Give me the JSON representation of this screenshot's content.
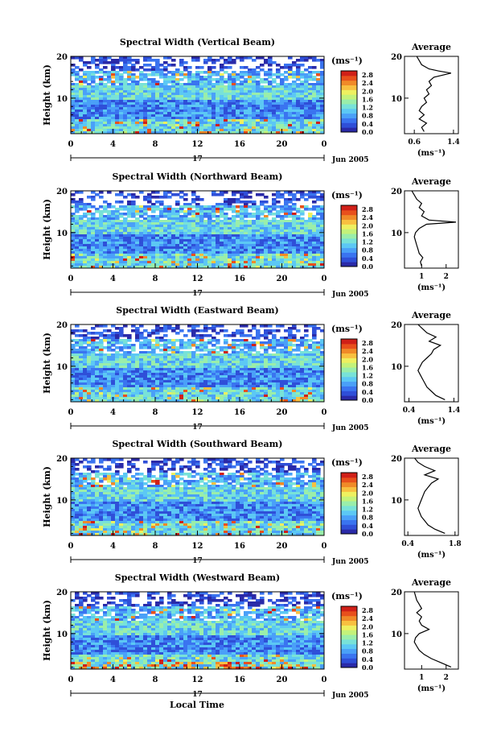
{
  "figure": {
    "xlabel": "Local Time",
    "date_label": "Jun 2005",
    "day_label": "17"
  },
  "colorbar": {
    "unit": "(ms⁻¹)",
    "ticks": [
      "2.8",
      "2.4",
      "2.0",
      "1.6",
      "1.2",
      "0.8",
      "0.4",
      "0.0"
    ],
    "colors": [
      "#2a2aa8",
      "#2f4fd8",
      "#3a74f0",
      "#4aa0f8",
      "#5cc8f4",
      "#78e2d8",
      "#9aeeaa",
      "#c4f27a",
      "#eef060",
      "#f8c040",
      "#f08a28",
      "#e8501c",
      "#d02018"
    ]
  },
  "chart_data": [
    {
      "type": "heatmap",
      "title": "Spectral Width (Vertical Beam)",
      "ylabel": "Height (km)",
      "ylim": [
        1.5,
        20
      ],
      "xlim": [
        0,
        24
      ],
      "xticks": [
        "0",
        "4",
        "8",
        "12",
        "16",
        "20",
        "0"
      ],
      "yticks": [
        "10",
        "20"
      ],
      "colorbar_range": [
        0,
        2.8
      ],
      "profile": {
        "title": "Average",
        "xlabel": "(ms⁻¹)",
        "xticks": [
          "0.6",
          "1.4"
        ],
        "xtick_values": [
          0.6,
          1.4
        ],
        "xlim": [
          0.4,
          1.5
        ],
        "yticks": [
          "10",
          "20"
        ],
        "points": [
          [
            0.8,
            2
          ],
          [
            0.75,
            3
          ],
          [
            0.85,
            4
          ],
          [
            0.7,
            5
          ],
          [
            0.8,
            6
          ],
          [
            0.7,
            7
          ],
          [
            0.75,
            8
          ],
          [
            0.85,
            9
          ],
          [
            0.8,
            10
          ],
          [
            0.9,
            11
          ],
          [
            0.85,
            12
          ],
          [
            0.95,
            13
          ],
          [
            0.9,
            14
          ],
          [
            1.0,
            15
          ],
          [
            1.35,
            16
          ],
          [
            1.1,
            16.5
          ],
          [
            0.9,
            17
          ],
          [
            0.75,
            18
          ],
          [
            0.7,
            19
          ],
          [
            0.65,
            20
          ]
        ]
      }
    },
    {
      "type": "heatmap",
      "title": "Spectral Width (Northward Beam)",
      "ylabel": "Height (km)",
      "ylim": [
        1.5,
        20
      ],
      "xlim": [
        0,
        24
      ],
      "xticks": [
        "0",
        "4",
        "8",
        "12",
        "16",
        "20",
        "0"
      ],
      "yticks": [
        "10",
        "20"
      ],
      "colorbar_range": [
        0,
        2.8
      ],
      "profile": {
        "title": "Average",
        "xlabel": "(ms⁻¹)",
        "xticks": [
          "1",
          "2"
        ],
        "xtick_values": [
          1,
          2
        ],
        "xlim": [
          0.3,
          2.5
        ],
        "yticks": [
          "10",
          "20"
        ],
        "points": [
          [
            1.0,
            2
          ],
          [
            0.95,
            3
          ],
          [
            1.05,
            4
          ],
          [
            0.9,
            5
          ],
          [
            0.85,
            6
          ],
          [
            0.8,
            7
          ],
          [
            0.75,
            8
          ],
          [
            0.7,
            9
          ],
          [
            0.75,
            10
          ],
          [
            0.9,
            11
          ],
          [
            1.2,
            12
          ],
          [
            2.4,
            12.5
          ],
          [
            1.3,
            13
          ],
          [
            1.0,
            14
          ],
          [
            1.1,
            15
          ],
          [
            0.9,
            16
          ],
          [
            1.0,
            17
          ],
          [
            0.8,
            18
          ],
          [
            0.7,
            19
          ],
          [
            0.6,
            20
          ]
        ]
      }
    },
    {
      "type": "heatmap",
      "title": "Spectral Width (Eastward Beam)",
      "ylabel": "Height (km)",
      "ylim": [
        1.5,
        20
      ],
      "xlim": [
        0,
        24
      ],
      "xticks": [
        "0",
        "4",
        "8",
        "12",
        "16",
        "20",
        "0"
      ],
      "yticks": [
        "10",
        "20"
      ],
      "colorbar_range": [
        0,
        2.8
      ],
      "profile": {
        "title": "Average",
        "xlabel": "(ms⁻¹)",
        "xticks": [
          "0.4",
          "1.4"
        ],
        "xtick_values": [
          0.4,
          1.4
        ],
        "xlim": [
          0.3,
          1.5
        ],
        "yticks": [
          "10",
          "20"
        ],
        "points": [
          [
            1.2,
            2
          ],
          [
            1.0,
            3
          ],
          [
            0.9,
            4
          ],
          [
            0.8,
            5
          ],
          [
            0.75,
            6
          ],
          [
            0.7,
            7
          ],
          [
            0.65,
            8
          ],
          [
            0.6,
            9
          ],
          [
            0.65,
            10
          ],
          [
            0.7,
            11
          ],
          [
            0.8,
            12
          ],
          [
            0.9,
            13
          ],
          [
            0.95,
            14
          ],
          [
            1.1,
            15
          ],
          [
            0.85,
            16
          ],
          [
            1.0,
            17
          ],
          [
            0.8,
            18
          ],
          [
            0.7,
            19
          ],
          [
            0.6,
            20
          ]
        ]
      }
    },
    {
      "type": "heatmap",
      "title": "Spectral Width (Southward Beam)",
      "ylabel": "Height (km)",
      "ylim": [
        1.5,
        20
      ],
      "xlim": [
        0,
        24
      ],
      "xticks": [
        "0",
        "4",
        "8",
        "12",
        "16",
        "20",
        "0"
      ],
      "yticks": [
        "10",
        "20"
      ],
      "colorbar_range": [
        0,
        2.8
      ],
      "profile": {
        "title": "Average",
        "xlabel": "(ms⁻¹)",
        "xticks": [
          "0.4",
          "1.8"
        ],
        "xtick_values": [
          0.4,
          1.8
        ],
        "xlim": [
          0.3,
          1.9
        ],
        "yticks": [
          "10",
          "20"
        ],
        "points": [
          [
            1.5,
            2
          ],
          [
            1.2,
            3
          ],
          [
            1.0,
            4
          ],
          [
            0.9,
            5
          ],
          [
            0.8,
            6
          ],
          [
            0.75,
            7
          ],
          [
            0.7,
            8
          ],
          [
            0.75,
            9
          ],
          [
            0.8,
            10
          ],
          [
            0.85,
            11
          ],
          [
            0.9,
            12
          ],
          [
            1.0,
            13
          ],
          [
            1.1,
            14
          ],
          [
            1.3,
            15
          ],
          [
            0.9,
            16
          ],
          [
            1.2,
            17
          ],
          [
            0.9,
            18
          ],
          [
            0.7,
            19
          ],
          [
            0.6,
            20
          ]
        ]
      }
    },
    {
      "type": "heatmap",
      "title": "Spectral Width (Westward Beam)",
      "ylabel": "Height (km)",
      "ylim": [
        1.5,
        20
      ],
      "xlim": [
        0,
        24
      ],
      "xticks": [
        "0",
        "4",
        "8",
        "12",
        "16",
        "20",
        "0"
      ],
      "yticks": [
        "10",
        "20"
      ],
      "colorbar_range": [
        0,
        2.8
      ],
      "profile": {
        "title": "Average",
        "xlabel": "(ms⁻¹)",
        "xticks": [
          "1",
          "2"
        ],
        "xtick_values": [
          1,
          2
        ],
        "xlim": [
          0.3,
          2.5
        ],
        "yticks": [
          "10",
          "20"
        ],
        "points": [
          [
            2.2,
            2
          ],
          [
            1.8,
            3
          ],
          [
            1.4,
            4
          ],
          [
            1.1,
            5
          ],
          [
            0.9,
            6
          ],
          [
            0.8,
            7
          ],
          [
            0.7,
            8
          ],
          [
            0.75,
            9
          ],
          [
            0.9,
            10
          ],
          [
            1.3,
            11
          ],
          [
            1.0,
            12
          ],
          [
            0.9,
            13
          ],
          [
            1.0,
            14
          ],
          [
            0.8,
            15
          ],
          [
            1.0,
            16
          ],
          [
            0.9,
            17
          ],
          [
            0.8,
            18
          ],
          [
            0.75,
            19
          ],
          [
            0.7,
            20
          ]
        ]
      }
    }
  ]
}
